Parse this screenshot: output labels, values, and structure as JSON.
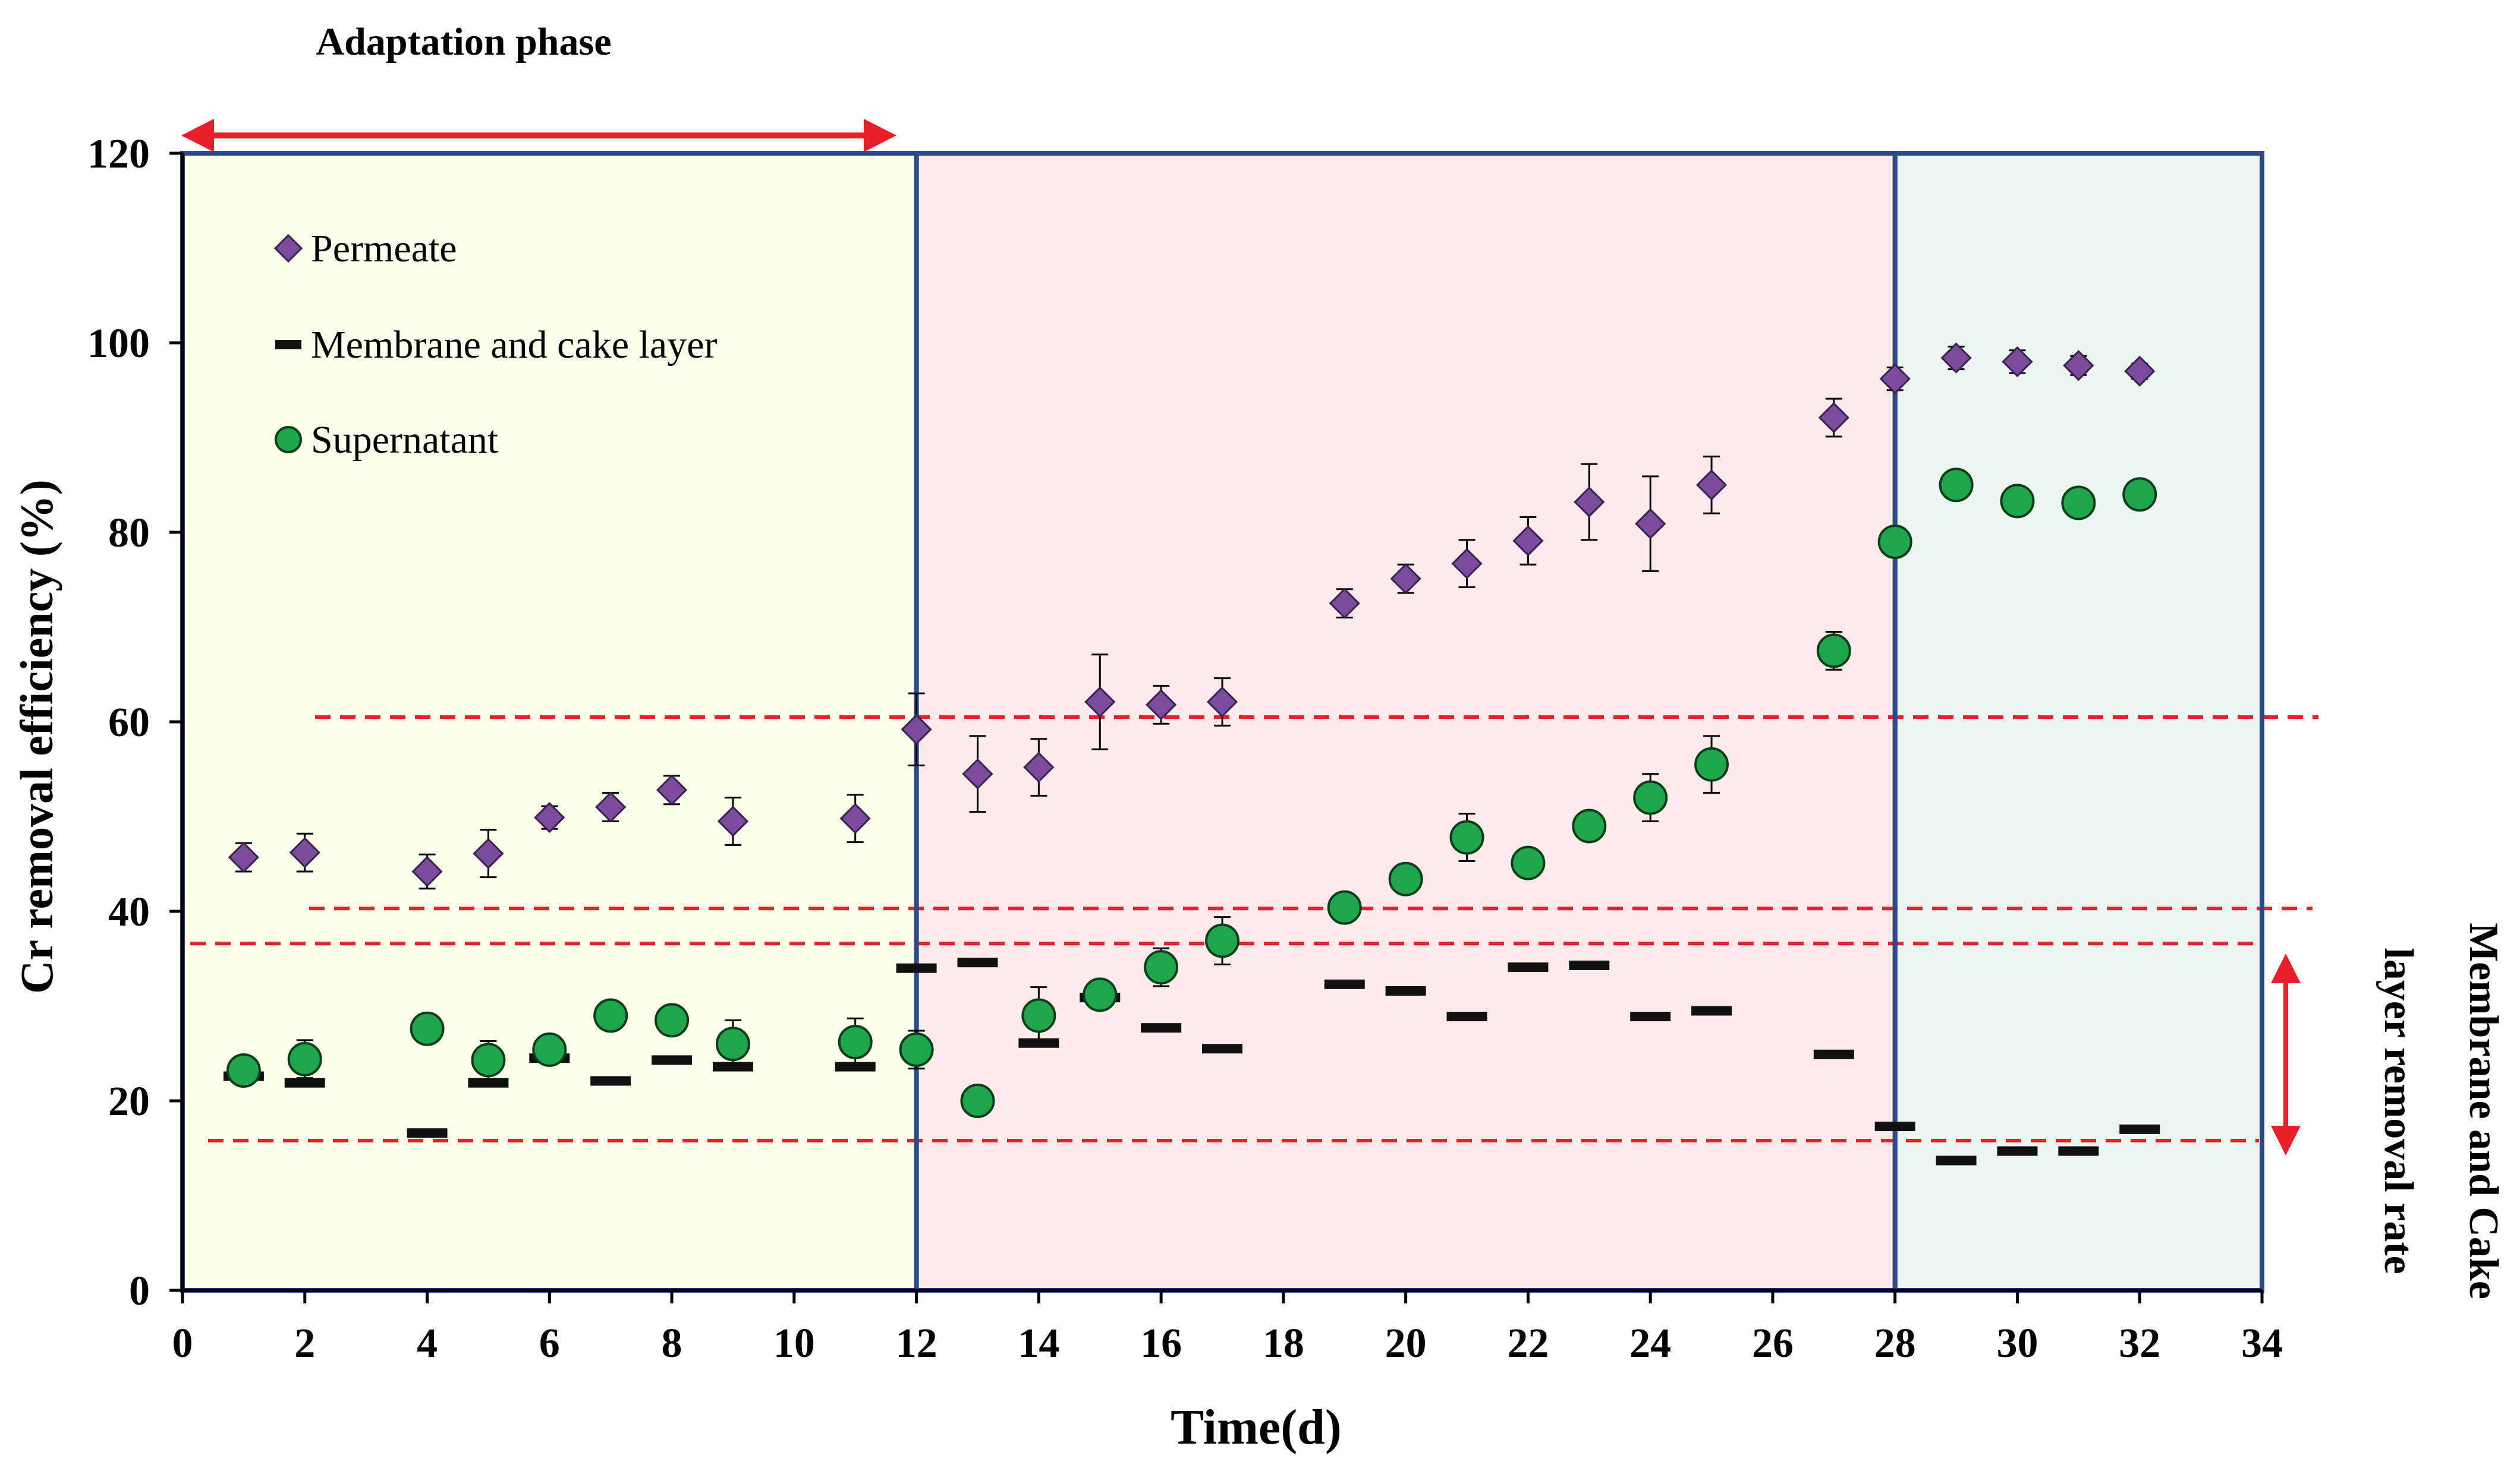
{
  "chart_data": {
    "type": "scatter",
    "title": "Adaptation phase",
    "xlabel": "Time(d)",
    "ylabel": "Cr removal efficiency  (%)",
    "right_label_line1": "Membrane and Cake",
    "right_label_line2": "layer removal rate",
    "xlim": [
      0,
      34
    ],
    "ylim": [
      0,
      120
    ],
    "xticks": [
      0,
      2,
      4,
      6,
      8,
      10,
      12,
      14,
      16,
      18,
      20,
      22,
      24,
      26,
      28,
      30,
      32,
      34
    ],
    "yticks": [
      0,
      20,
      40,
      60,
      80,
      100,
      120
    ],
    "phases": [
      {
        "x_start": 0,
        "x_end": 12,
        "color": "#fdfdec"
      },
      {
        "x_start": 12,
        "x_end": 28,
        "color": "#fdebeb"
      },
      {
        "x_start": 28,
        "x_end": 34,
        "color": "#eaf6ef"
      }
    ],
    "reference_lines": [
      60.5,
      40.3,
      36.6,
      15.8
    ],
    "series": [
      {
        "name": "Permeate",
        "marker": "diamond",
        "color": "#7b4c9c",
        "points": [
          {
            "x": 1,
            "y": 45.7,
            "err": 1.5
          },
          {
            "x": 2,
            "y": 46.2,
            "err": 2.0
          },
          {
            "x": 4,
            "y": 44.2,
            "err": 1.8
          },
          {
            "x": 5,
            "y": 46.1,
            "err": 2.5
          },
          {
            "x": 6,
            "y": 49.9,
            "err": 1.2
          },
          {
            "x": 7,
            "y": 51.0,
            "err": 1.5
          },
          {
            "x": 8,
            "y": 52.8,
            "err": 1.5
          },
          {
            "x": 9,
            "y": 49.5,
            "err": 2.5
          },
          {
            "x": 11,
            "y": 49.8,
            "err": 2.5
          },
          {
            "x": 12,
            "y": 59.2,
            "err": 3.8
          },
          {
            "x": 13,
            "y": 54.5,
            "err": 4.0
          },
          {
            "x": 14,
            "y": 55.2,
            "err": 3.0
          },
          {
            "x": 15,
            "y": 62.1,
            "err": 5.0
          },
          {
            "x": 16,
            "y": 61.8,
            "err": 2.0
          },
          {
            "x": 17,
            "y": 62.1,
            "err": 2.5
          },
          {
            "x": 19,
            "y": 72.5,
            "err": 1.5
          },
          {
            "x": 20,
            "y": 75.1,
            "err": 1.5
          },
          {
            "x": 21,
            "y": 76.7,
            "err": 2.5
          },
          {
            "x": 22,
            "y": 79.1,
            "err": 2.5
          },
          {
            "x": 23,
            "y": 83.2,
            "err": 4.0
          },
          {
            "x": 24,
            "y": 80.9,
            "err": 5.0
          },
          {
            "x": 25,
            "y": 85.0,
            "err": 3.0
          },
          {
            "x": 27,
            "y": 92.1,
            "err": 2.0
          },
          {
            "x": 28,
            "y": 96.2,
            "err": 1.2
          },
          {
            "x": 29,
            "y": 98.4,
            "err": 1.2
          },
          {
            "x": 30,
            "y": 98.0,
            "err": 1.2
          },
          {
            "x": 31,
            "y": 97.6,
            "err": 1.0
          },
          {
            "x": 32,
            "y": 97.0,
            "err": 0.8
          }
        ]
      },
      {
        "name": "Membrane and cake layer",
        "marker": "dash",
        "color": "#111111",
        "points": [
          {
            "x": 1,
            "y": 22.6
          },
          {
            "x": 2,
            "y": 21.9
          },
          {
            "x": 4,
            "y": 16.6
          },
          {
            "x": 5,
            "y": 21.9
          },
          {
            "x": 6,
            "y": 24.5
          },
          {
            "x": 7,
            "y": 22.1
          },
          {
            "x": 8,
            "y": 24.3
          },
          {
            "x": 9,
            "y": 23.6
          },
          {
            "x": 11,
            "y": 23.6
          },
          {
            "x": 12,
            "y": 34.0
          },
          {
            "x": 13,
            "y": 34.6
          },
          {
            "x": 14,
            "y": 26.1
          },
          {
            "x": 15,
            "y": 30.9
          },
          {
            "x": 16,
            "y": 27.7
          },
          {
            "x": 17,
            "y": 25.5
          },
          {
            "x": 19,
            "y": 32.3
          },
          {
            "x": 20,
            "y": 31.6
          },
          {
            "x": 21,
            "y": 28.9
          },
          {
            "x": 22,
            "y": 34.1
          },
          {
            "x": 23,
            "y": 34.3
          },
          {
            "x": 24,
            "y": 28.9
          },
          {
            "x": 25,
            "y": 29.5
          },
          {
            "x": 27,
            "y": 24.9
          },
          {
            "x": 28,
            "y": 17.3
          },
          {
            "x": 29,
            "y": 13.7
          },
          {
            "x": 30,
            "y": 14.7
          },
          {
            "x": 31,
            "y": 14.7
          },
          {
            "x": 32,
            "y": 17.0
          }
        ]
      },
      {
        "name": "Supernatant",
        "marker": "circle",
        "color": "#1fa64a",
        "points": [
          {
            "x": 1,
            "y": 23.2,
            "err": 1.2
          },
          {
            "x": 2,
            "y": 24.4,
            "err": 2.0
          },
          {
            "x": 4,
            "y": 27.6,
            "err": 1.5
          },
          {
            "x": 5,
            "y": 24.3,
            "err": 2.0
          },
          {
            "x": 6,
            "y": 25.4,
            "err": 1.0
          },
          {
            "x": 7,
            "y": 29.0,
            "err": 1.2
          },
          {
            "x": 8,
            "y": 28.5,
            "err": 1.0
          },
          {
            "x": 9,
            "y": 26.0,
            "err": 2.5
          },
          {
            "x": 11,
            "y": 26.2,
            "err": 2.5
          },
          {
            "x": 12,
            "y": 25.4,
            "err": 2.0
          },
          {
            "x": 13,
            "y": 20.0,
            "err": 0
          },
          {
            "x": 14,
            "y": 29.0,
            "err": 3.0
          },
          {
            "x": 15,
            "y": 31.2,
            "err": 1.5
          },
          {
            "x": 16,
            "y": 34.1,
            "err": 2.0
          },
          {
            "x": 17,
            "y": 36.9,
            "err": 2.5
          },
          {
            "x": 19,
            "y": 40.4,
            "err": 1.0
          },
          {
            "x": 20,
            "y": 43.4,
            "err": 1.2
          },
          {
            "x": 21,
            "y": 47.8,
            "err": 2.5
          },
          {
            "x": 22,
            "y": 45.1,
            "err": 1.5
          },
          {
            "x": 23,
            "y": 49.0,
            "err": 1.0
          },
          {
            "x": 24,
            "y": 52.0,
            "err": 2.5
          },
          {
            "x": 25,
            "y": 55.5,
            "err": 3.0
          },
          {
            "x": 27,
            "y": 67.5,
            "err": 2.0
          },
          {
            "x": 28,
            "y": 79.0,
            "err": 1.0
          },
          {
            "x": 29,
            "y": 85.0,
            "err": 0.8
          },
          {
            "x": 30,
            "y": 83.3,
            "err": 1.2
          },
          {
            "x": 31,
            "y": 83.1,
            "err": 1.0
          },
          {
            "x": 32,
            "y": 84.0,
            "err": 1.0
          }
        ]
      }
    ]
  }
}
